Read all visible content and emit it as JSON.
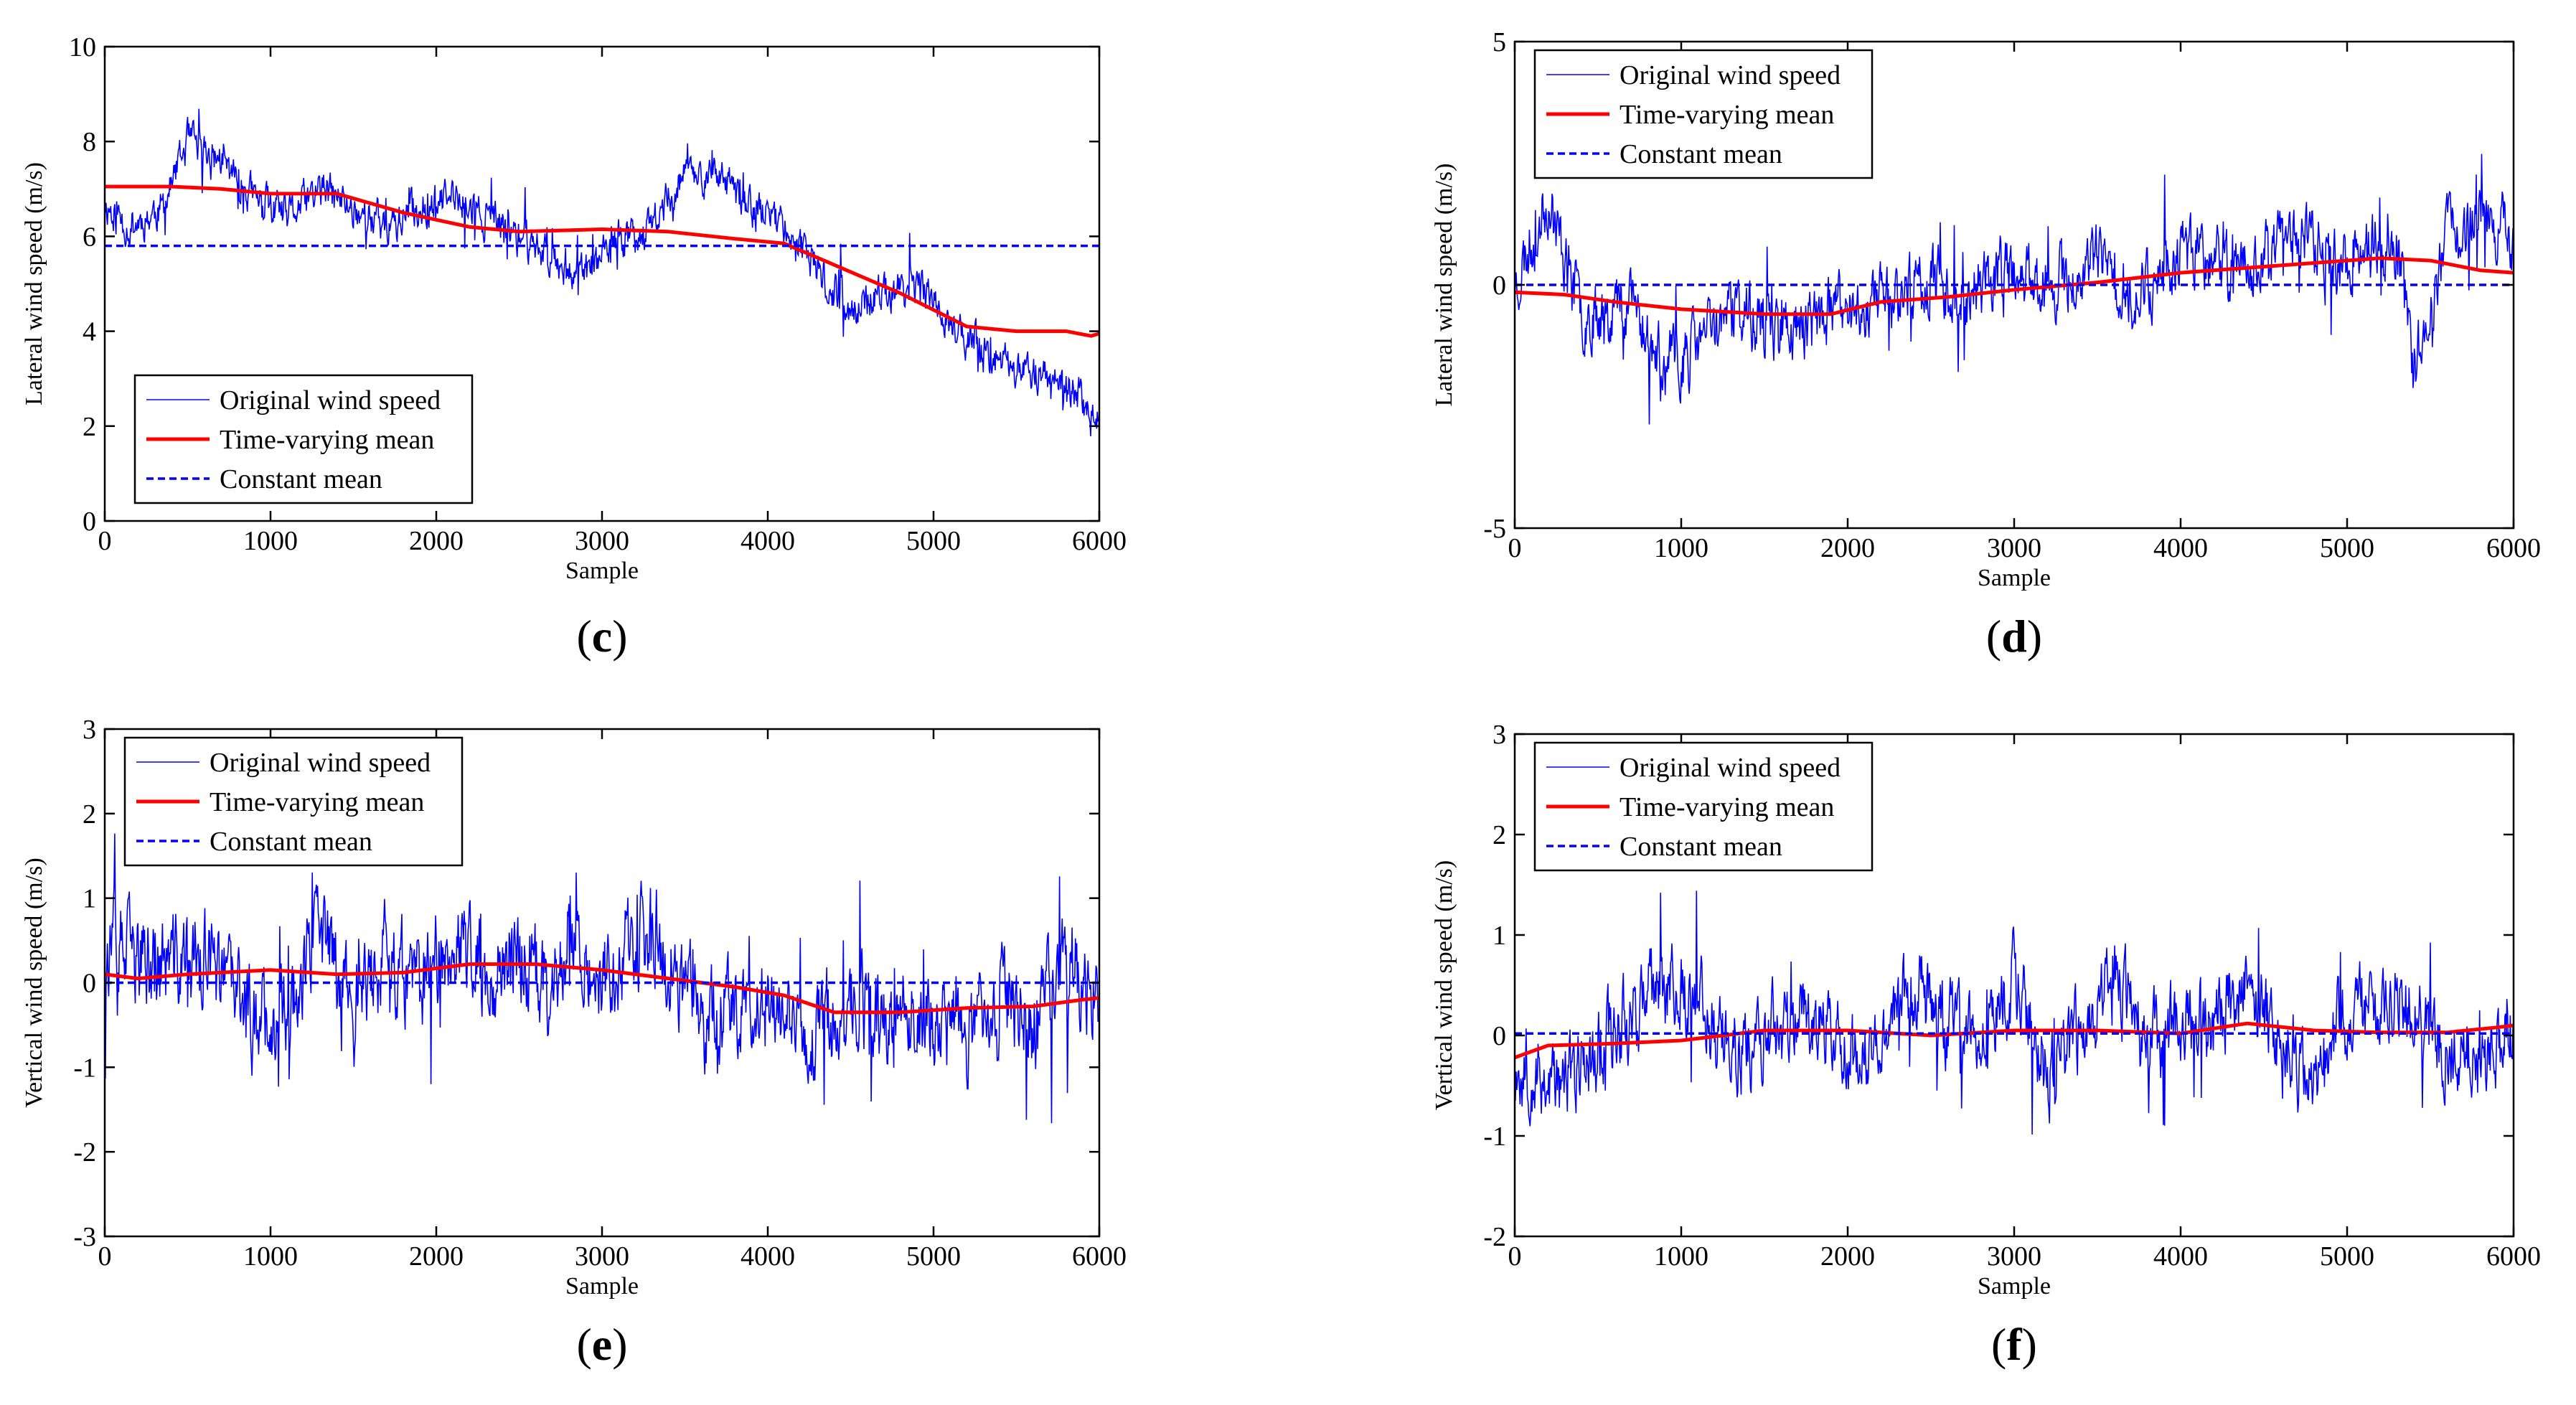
{
  "figure": {
    "colors": {
      "original": "#0000ff",
      "time_varying": "#ff0000",
      "constant": "#0000ff",
      "axes": "#000000",
      "background": "#ffffff"
    }
  },
  "chart_data": [
    {
      "id": "c",
      "type": "line",
      "panel_label": "c",
      "xlabel": "Sample",
      "ylabel": "Lateral wind speed (m/s)",
      "xlim": [
        0,
        6000
      ],
      "ylim": [
        0,
        10
      ],
      "xticks": [
        0,
        1000,
        2000,
        3000,
        4000,
        5000,
        6000
      ],
      "yticks": [
        0,
        2,
        4,
        6,
        8,
        10
      ],
      "legend_position": "bottom-left",
      "legend": [
        "Original wind speed",
        "Time-varying mean",
        "Constant mean"
      ],
      "series": [
        {
          "name": "Original wind speed",
          "style": "thin-solid",
          "anchors": [
            [
              0,
              6.7
            ],
            [
              150,
              6.2
            ],
            [
              350,
              6.6
            ],
            [
              500,
              8.0
            ],
            [
              700,
              7.6
            ],
            [
              900,
              6.8
            ],
            [
              1100,
              6.4
            ],
            [
              1300,
              7.0
            ],
            [
              1500,
              6.6
            ],
            [
              1700,
              6.2
            ],
            [
              1900,
              6.6
            ],
            [
              2100,
              6.8
            ],
            [
              2300,
              6.4
            ],
            [
              2500,
              6.0
            ],
            [
              2700,
              5.6
            ],
            [
              2900,
              5.2
            ],
            [
              3100,
              5.9
            ],
            [
              3300,
              6.2
            ],
            [
              3500,
              7.4
            ],
            [
              3700,
              7.2
            ],
            [
              3900,
              6.6
            ],
            [
              4100,
              6.3
            ],
            [
              4300,
              5.2
            ],
            [
              4500,
              4.4
            ],
            [
              4700,
              4.8
            ],
            [
              4900,
              5.0
            ],
            [
              5100,
              4.2
            ],
            [
              5300,
              3.5
            ],
            [
              5500,
              3.2
            ],
            [
              5700,
              3.0
            ],
            [
              5900,
              2.6
            ],
            [
              6000,
              2.0
            ]
          ],
          "noise_amplitude": 0.55,
          "seed": 11
        },
        {
          "name": "Time-varying mean",
          "style": "thick-solid",
          "points": [
            [
              0,
              7.05
            ],
            [
              400,
              7.05
            ],
            [
              700,
              7.0
            ],
            [
              1000,
              6.9
            ],
            [
              1400,
              6.9
            ],
            [
              1800,
              6.5
            ],
            [
              2200,
              6.2
            ],
            [
              2500,
              6.1
            ],
            [
              3000,
              6.15
            ],
            [
              3400,
              6.1
            ],
            [
              3800,
              5.95
            ],
            [
              4100,
              5.85
            ],
            [
              4400,
              5.4
            ],
            [
              4800,
              4.8
            ],
            [
              5200,
              4.1
            ],
            [
              5500,
              4.0
            ],
            [
              5800,
              4.0
            ],
            [
              5950,
              3.9
            ],
            [
              6000,
              3.95
            ]
          ]
        },
        {
          "name": "Constant mean",
          "style": "dashed",
          "points": [
            [
              0,
              5.8
            ],
            [
              6000,
              5.8
            ]
          ]
        }
      ]
    },
    {
      "id": "d",
      "type": "line",
      "panel_label": "d",
      "xlabel": "Sample",
      "ylabel": "Lateral wind speed (m/s)",
      "xlim": [
        0,
        6000
      ],
      "ylim": [
        -5,
        5
      ],
      "xticks": [
        0,
        1000,
        2000,
        3000,
        4000,
        5000,
        6000
      ],
      "yticks": [
        -5,
        0,
        5
      ],
      "legend_position": "top-left",
      "legend": [
        "Original wind speed",
        "Time-varying mean",
        "Constant mean"
      ],
      "series": [
        {
          "name": "Original wind speed",
          "style": "thin-solid",
          "anchors": [
            [
              0,
              0.0
            ],
            [
              200,
              1.8
            ],
            [
              400,
              -0.6
            ],
            [
              700,
              -0.3
            ],
            [
              900,
              -1.8
            ],
            [
              1100,
              -1.2
            ],
            [
              1300,
              -0.5
            ],
            [
              1500,
              -0.8
            ],
            [
              1700,
              -0.9
            ],
            [
              1900,
              -0.6
            ],
            [
              2100,
              -0.4
            ],
            [
              2300,
              -0.2
            ],
            [
              2500,
              0.2
            ],
            [
              2700,
              -0.3
            ],
            [
              2900,
              0.3
            ],
            [
              3100,
              0.1
            ],
            [
              3300,
              0.0
            ],
            [
              3500,
              0.5
            ],
            [
              3700,
              -0.2
            ],
            [
              3900,
              0.3
            ],
            [
              4100,
              0.8
            ],
            [
              4300,
              0.2
            ],
            [
              4500,
              0.6
            ],
            [
              4700,
              1.2
            ],
            [
              4900,
              0.4
            ],
            [
              5100,
              0.7
            ],
            [
              5300,
              0.9
            ],
            [
              5400,
              -1.8
            ],
            [
              5600,
              1.0
            ],
            [
              5800,
              1.5
            ],
            [
              6000,
              1.0
            ]
          ],
          "noise_amplitude": 0.9,
          "seed": 23
        },
        {
          "name": "Time-varying mean",
          "style": "thick-solid",
          "points": [
            [
              0,
              -0.15
            ],
            [
              300,
              -0.2
            ],
            [
              600,
              -0.35
            ],
            [
              1000,
              -0.5
            ],
            [
              1500,
              -0.6
            ],
            [
              1900,
              -0.6
            ],
            [
              2200,
              -0.35
            ],
            [
              2600,
              -0.25
            ],
            [
              3000,
              -0.1
            ],
            [
              3500,
              0.05
            ],
            [
              4000,
              0.25
            ],
            [
              4400,
              0.35
            ],
            [
              4800,
              0.45
            ],
            [
              5200,
              0.55
            ],
            [
              5500,
              0.5
            ],
            [
              5800,
              0.3
            ],
            [
              6000,
              0.25
            ]
          ]
        },
        {
          "name": "Constant mean",
          "style": "dashed",
          "points": [
            [
              0,
              0.0
            ],
            [
              6000,
              0.0
            ]
          ]
        }
      ]
    },
    {
      "id": "e",
      "type": "line",
      "panel_label": "e",
      "xlabel": "Sample",
      "ylabel": "Vertical wind speed (m/s)",
      "xlim": [
        0,
        6000
      ],
      "ylim": [
        -3,
        3
      ],
      "xticks": [
        0,
        1000,
        2000,
        3000,
        4000,
        5000,
        6000
      ],
      "yticks": [
        -3,
        -2,
        -1,
        0,
        1,
        2,
        3
      ],
      "legend_position": "top-left",
      "legend": [
        "Original wind speed",
        "Time-varying mean",
        "Constant mean"
      ],
      "series": [
        {
          "name": "Original wind speed",
          "style": "thin-solid",
          "anchors": [
            [
              0,
              0.4
            ],
            [
              300,
              0.2
            ],
            [
              600,
              0.3
            ],
            [
              900,
              -0.4
            ],
            [
              1100,
              -0.3
            ],
            [
              1300,
              0.6
            ],
            [
              1500,
              -0.2
            ],
            [
              1700,
              0.3
            ],
            [
              1900,
              -0.1
            ],
            [
              2100,
              0.5
            ],
            [
              2300,
              0.1
            ],
            [
              2500,
              0.4
            ],
            [
              2700,
              -0.2
            ],
            [
              2800,
              0.8
            ],
            [
              3000,
              0.0
            ],
            [
              3200,
              0.5
            ],
            [
              3400,
              0.2
            ],
            [
              3600,
              -0.4
            ],
            [
              3800,
              -0.2
            ],
            [
              4000,
              -0.3
            ],
            [
              4300,
              -0.6
            ],
            [
              4500,
              -0.2
            ],
            [
              4700,
              -0.5
            ],
            [
              4900,
              -0.3
            ],
            [
              5200,
              -0.7
            ],
            [
              5400,
              -0.1
            ],
            [
              5600,
              -0.5
            ],
            [
              5800,
              0.3
            ],
            [
              6000,
              -0.2
            ]
          ],
          "noise_amplitude": 0.75,
          "seed": 37
        },
        {
          "name": "Time-varying mean",
          "style": "thick-solid",
          "points": [
            [
              0,
              0.1
            ],
            [
              200,
              0.05
            ],
            [
              500,
              0.1
            ],
            [
              1000,
              0.15
            ],
            [
              1400,
              0.1
            ],
            [
              1800,
              0.12
            ],
            [
              2200,
              0.22
            ],
            [
              2600,
              0.22
            ],
            [
              3000,
              0.15
            ],
            [
              3400,
              0.05
            ],
            [
              3800,
              -0.05
            ],
            [
              4100,
              -0.15
            ],
            [
              4400,
              -0.35
            ],
            [
              4800,
              -0.35
            ],
            [
              5200,
              -0.3
            ],
            [
              5600,
              -0.28
            ],
            [
              5900,
              -0.2
            ],
            [
              6000,
              -0.18
            ]
          ]
        },
        {
          "name": "Constant mean",
          "style": "dashed",
          "points": [
            [
              0,
              0.0
            ],
            [
              6000,
              0.0
            ]
          ]
        }
      ]
    },
    {
      "id": "f",
      "type": "line",
      "panel_label": "f",
      "xlabel": "Sample",
      "ylabel": "Vertical wind speed (m/s)",
      "xlim": [
        0,
        6000
      ],
      "ylim": [
        -2,
        3
      ],
      "xticks": [
        0,
        1000,
        2000,
        3000,
        4000,
        5000,
        6000
      ],
      "yticks": [
        -2,
        -1,
        0,
        1,
        2,
        3
      ],
      "legend_position": "top-left",
      "legend": [
        "Original wind speed",
        "Time-varying mean",
        "Constant mean"
      ],
      "series": [
        {
          "name": "Original wind speed",
          "style": "thin-solid",
          "anchors": [
            [
              0,
              -0.3
            ],
            [
              300,
              -0.5
            ],
            [
              600,
              0.1
            ],
            [
              900,
              0.5
            ],
            [
              1100,
              0.4
            ],
            [
              1300,
              -0.2
            ],
            [
              1500,
              0.0
            ],
            [
              1800,
              0.2
            ],
            [
              2100,
              -0.3
            ],
            [
              2400,
              0.5
            ],
            [
              2600,
              0.1
            ],
            [
              2800,
              -0.1
            ],
            [
              3000,
              0.6
            ],
            [
              3200,
              -0.4
            ],
            [
              3400,
              0.0
            ],
            [
              3600,
              0.6
            ],
            [
              3800,
              -0.1
            ],
            [
              4000,
              0.2
            ],
            [
              4200,
              0.1
            ],
            [
              4400,
              0.6
            ],
            [
              4600,
              0.0
            ],
            [
              4800,
              -0.3
            ],
            [
              5000,
              0.2
            ],
            [
              5300,
              0.4
            ],
            [
              5600,
              -0.1
            ],
            [
              5800,
              -0.3
            ],
            [
              6000,
              0.2
            ]
          ],
          "noise_amplitude": 0.55,
          "seed": 53
        },
        {
          "name": "Time-varying mean",
          "style": "thick-solid",
          "points": [
            [
              0,
              -0.22
            ],
            [
              200,
              -0.1
            ],
            [
              600,
              -0.08
            ],
            [
              1000,
              -0.05
            ],
            [
              1500,
              0.05
            ],
            [
              2000,
              0.05
            ],
            [
              2500,
              0.0
            ],
            [
              3000,
              0.05
            ],
            [
              3500,
              0.05
            ],
            [
              4000,
              0.02
            ],
            [
              4400,
              0.12
            ],
            [
              4800,
              0.05
            ],
            [
              5200,
              0.03
            ],
            [
              5600,
              0.03
            ],
            [
              5900,
              0.08
            ],
            [
              6000,
              0.1
            ]
          ]
        },
        {
          "name": "Constant mean",
          "style": "dashed",
          "points": [
            [
              0,
              0.02
            ],
            [
              6000,
              0.02
            ]
          ]
        }
      ]
    }
  ]
}
